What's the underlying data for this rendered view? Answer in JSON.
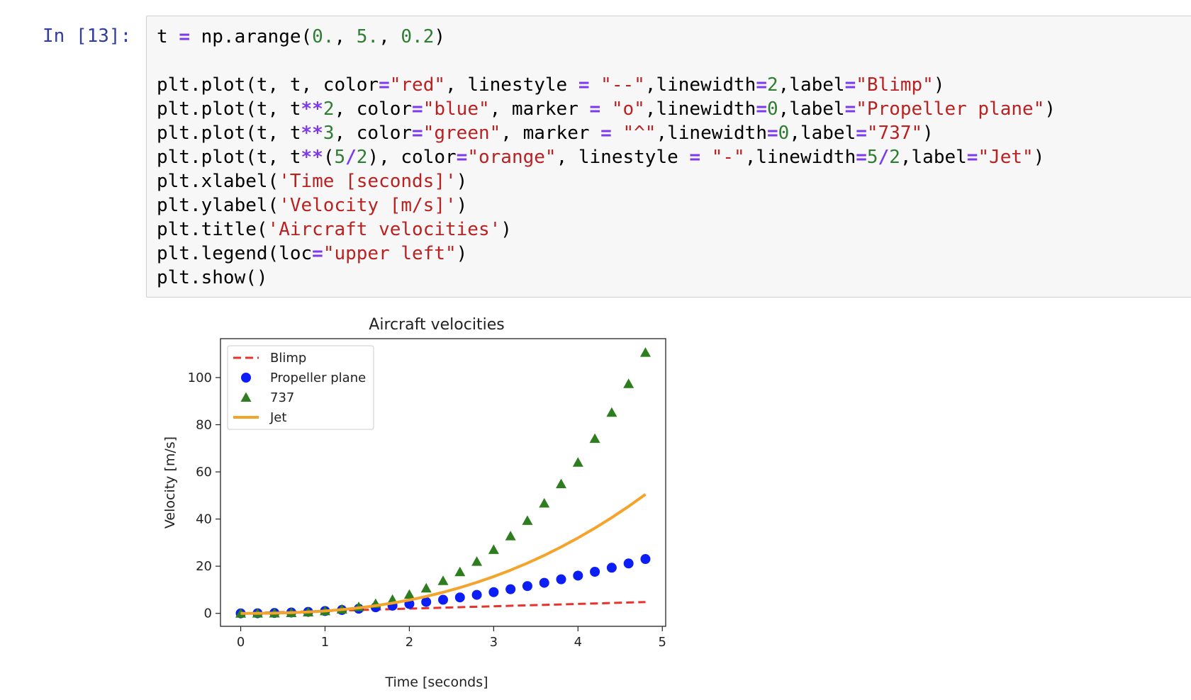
{
  "cell": {
    "prompt": "In [13]:",
    "code_lines": [
      [
        {
          "t": "t "
        },
        {
          "t": "=",
          "c": "k"
        },
        {
          "t": " np.arange("
        },
        {
          "t": "0.",
          "c": "n"
        },
        {
          "t": ", "
        },
        {
          "t": "5.",
          "c": "n"
        },
        {
          "t": ", "
        },
        {
          "t": "0.2",
          "c": "n"
        },
        {
          "t": ")"
        }
      ],
      [],
      [
        {
          "t": "plt.plot(t, t, color"
        },
        {
          "t": "=",
          "c": "k"
        },
        {
          "t": "\"red\"",
          "c": "s"
        },
        {
          "t": ", linestyle "
        },
        {
          "t": "=",
          "c": "k"
        },
        {
          "t": " "
        },
        {
          "t": "\"--\"",
          "c": "s"
        },
        {
          "t": ",linewidth"
        },
        {
          "t": "=",
          "c": "k"
        },
        {
          "t": "2",
          "c": "n"
        },
        {
          "t": ",label"
        },
        {
          "t": "=",
          "c": "k"
        },
        {
          "t": "\"Blimp\"",
          "c": "s"
        },
        {
          "t": ")"
        }
      ],
      [
        {
          "t": "plt.plot(t, t"
        },
        {
          "t": "**",
          "c": "k"
        },
        {
          "t": "2",
          "c": "n"
        },
        {
          "t": ", color"
        },
        {
          "t": "=",
          "c": "k"
        },
        {
          "t": "\"blue\"",
          "c": "s"
        },
        {
          "t": ", marker "
        },
        {
          "t": "=",
          "c": "k"
        },
        {
          "t": " "
        },
        {
          "t": "\"o\"",
          "c": "s"
        },
        {
          "t": ",linewidth"
        },
        {
          "t": "=",
          "c": "k"
        },
        {
          "t": "0",
          "c": "n"
        },
        {
          "t": ",label"
        },
        {
          "t": "=",
          "c": "k"
        },
        {
          "t": "\"Propeller plane\"",
          "c": "s"
        },
        {
          "t": ")"
        }
      ],
      [
        {
          "t": "plt.plot(t, t"
        },
        {
          "t": "**",
          "c": "k"
        },
        {
          "t": "3",
          "c": "n"
        },
        {
          "t": ", color"
        },
        {
          "t": "=",
          "c": "k"
        },
        {
          "t": "\"green\"",
          "c": "s"
        },
        {
          "t": ", marker "
        },
        {
          "t": "=",
          "c": "k"
        },
        {
          "t": " "
        },
        {
          "t": "\"^\"",
          "c": "s"
        },
        {
          "t": ",linewidth"
        },
        {
          "t": "=",
          "c": "k"
        },
        {
          "t": "0",
          "c": "n"
        },
        {
          "t": ",label"
        },
        {
          "t": "=",
          "c": "k"
        },
        {
          "t": "\"737\"",
          "c": "s"
        },
        {
          "t": ")"
        }
      ],
      [
        {
          "t": "plt.plot(t, t"
        },
        {
          "t": "**",
          "c": "k"
        },
        {
          "t": "("
        },
        {
          "t": "5",
          "c": "n"
        },
        {
          "t": "/",
          "c": "k"
        },
        {
          "t": "2",
          "c": "n"
        },
        {
          "t": "), color"
        },
        {
          "t": "=",
          "c": "k"
        },
        {
          "t": "\"orange\"",
          "c": "s"
        },
        {
          "t": ", linestyle "
        },
        {
          "t": "=",
          "c": "k"
        },
        {
          "t": " "
        },
        {
          "t": "\"-\"",
          "c": "s"
        },
        {
          "t": ",linewidth"
        },
        {
          "t": "=",
          "c": "k"
        },
        {
          "t": "5",
          "c": "n"
        },
        {
          "t": "/",
          "c": "k"
        },
        {
          "t": "2",
          "c": "n"
        },
        {
          "t": ",label"
        },
        {
          "t": "=",
          "c": "k"
        },
        {
          "t": "\"Jet\"",
          "c": "s"
        },
        {
          "t": ")"
        }
      ],
      [
        {
          "t": "plt.xlabel("
        },
        {
          "t": "'Time [seconds]'",
          "c": "s"
        },
        {
          "t": ")"
        }
      ],
      [
        {
          "t": "plt.ylabel("
        },
        {
          "t": "'Velocity [m/s]'",
          "c": "s"
        },
        {
          "t": ")"
        }
      ],
      [
        {
          "t": "plt.title("
        },
        {
          "t": "'Aircraft velocities'",
          "c": "s"
        },
        {
          "t": ")"
        }
      ],
      [
        {
          "t": "plt.legend(loc"
        },
        {
          "t": "=",
          "c": "k"
        },
        {
          "t": "\"upper left\"",
          "c": "s"
        },
        {
          "t": ")"
        }
      ],
      [
        {
          "t": "plt.show()"
        }
      ]
    ]
  },
  "chart_data": {
    "type": "line",
    "title": "Aircraft velocities",
    "xlabel": "Time [seconds]",
    "ylabel": "Velocity [m/s]",
    "xlim": [
      -0.24,
      5.04
    ],
    "ylim": [
      -5.5,
      116.5
    ],
    "xticks": [
      0,
      1,
      2,
      3,
      4,
      5
    ],
    "yticks": [
      0,
      20,
      40,
      60,
      80,
      100
    ],
    "grid": false,
    "legend_position": "upper-left",
    "x": [
      0.0,
      0.2,
      0.4,
      0.6,
      0.8,
      1.0,
      1.2,
      1.4,
      1.6,
      1.8,
      2.0,
      2.2,
      2.4,
      2.6,
      2.8,
      3.0,
      3.2,
      3.4,
      3.6,
      3.8,
      4.0,
      4.2,
      4.4,
      4.6,
      4.8
    ],
    "series": [
      {
        "name": "Blimp",
        "style": "dashed-line",
        "color": "#e8332c",
        "values": [
          0.0,
          0.2,
          0.4,
          0.6,
          0.8,
          1.0,
          1.2,
          1.4,
          1.6,
          1.8,
          2.0,
          2.2,
          2.4,
          2.6,
          2.8,
          3.0,
          3.2,
          3.4,
          3.6,
          3.8,
          4.0,
          4.2,
          4.4,
          4.6,
          4.8
        ]
      },
      {
        "name": "Propeller plane",
        "style": "circle-marker",
        "color": "#0a1ef5",
        "values": [
          0.0,
          0.04,
          0.16,
          0.36,
          0.64,
          1.0,
          1.44,
          1.96,
          2.56,
          3.24,
          4.0,
          4.84,
          5.76,
          6.76,
          7.84,
          9.0,
          10.24,
          11.56,
          12.96,
          14.44,
          16.0,
          17.64,
          19.36,
          21.16,
          23.04
        ]
      },
      {
        "name": "737",
        "style": "triangle-marker",
        "color": "#2e7d1e",
        "values": [
          0.0,
          0.008,
          0.064,
          0.216,
          0.512,
          1.0,
          1.728,
          2.744,
          4.096,
          5.832,
          8.0,
          10.648,
          13.824,
          17.576,
          21.952,
          27.0,
          32.768,
          39.304,
          46.656,
          54.872,
          64.0,
          74.088,
          85.184,
          97.336,
          110.592
        ]
      },
      {
        "name": "Jet",
        "style": "solid-line",
        "color": "#f4a42b",
        "values": [
          0.0,
          0.018,
          0.101,
          0.279,
          0.572,
          1.0,
          1.577,
          2.319,
          3.238,
          4.347,
          5.657,
          7.178,
          8.924,
          10.902,
          13.119,
          15.588,
          18.318,
          21.316,
          24.59,
          28.148,
          32.0,
          36.147,
          40.61,
          45.383,
          50.478
        ]
      }
    ]
  }
}
